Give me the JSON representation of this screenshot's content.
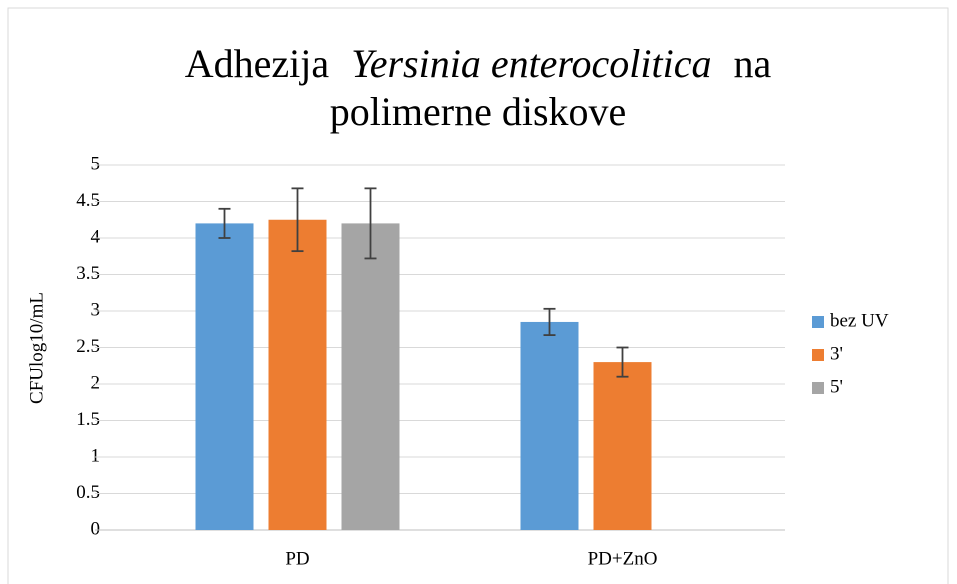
{
  "chart_data": {
    "type": "bar",
    "title": [
      "Adhezija",
      "Yersinia enterocolitica",
      "na",
      "polimerne diskove"
    ],
    "ylabel": "CFUlog10/mL",
    "categories": [
      "PD",
      "PD+ZnO"
    ],
    "series": [
      {
        "name": "bez UV",
        "color": "#5b9bd5",
        "values": [
          4.2,
          2.85
        ],
        "errors": [
          0.2,
          0.18
        ]
      },
      {
        "name": "3'",
        "color": "#ed7d31",
        "values": [
          4.25,
          2.3
        ],
        "errors": [
          0.43,
          0.2
        ]
      },
      {
        "name": "5'",
        "color": "#a5a5a5",
        "values": [
          4.2,
          null
        ],
        "errors": [
          0.48,
          null
        ]
      }
    ],
    "ylim": [
      0,
      5
    ],
    "yticks": [
      0,
      0.5,
      1,
      1.5,
      2,
      2.5,
      3,
      3.5,
      4,
      4.5,
      5
    ],
    "grid": true,
    "legend": "right"
  }
}
